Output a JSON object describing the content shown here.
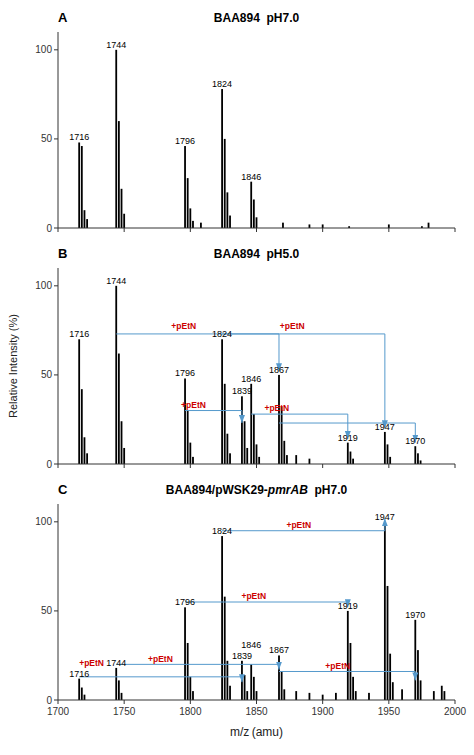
{
  "chart_data": [
    {
      "type": "bar",
      "panel_label": "A",
      "title": "BAA894  pH7.0",
      "color": "black",
      "x": [
        1716,
        1718,
        1720,
        1722,
        1744,
        1746,
        1748,
        1750,
        1796,
        1798,
        1800,
        1802,
        1808,
        1824,
        1826,
        1828,
        1830,
        1846,
        1848,
        1850,
        1870,
        1890,
        1900,
        1920,
        1950,
        1975,
        1980
      ],
      "values": [
        48,
        46,
        10,
        5,
        100,
        60,
        22,
        8,
        46,
        28,
        11,
        4,
        3,
        78,
        50,
        20,
        7,
        26,
        16,
        6,
        3,
        2,
        2,
        1,
        2,
        1,
        3
      ],
      "xlim": [
        1700,
        2000
      ],
      "ylim": [
        0,
        110
      ],
      "xticks": [
        1700,
        1750,
        1800,
        1850,
        1900,
        1950,
        2000
      ],
      "yticks": [
        0,
        50,
        100
      ],
      "tick_labels": "y",
      "grid": false,
      "peak_labels": [
        {
          "text": "1716",
          "x": 1716,
          "y": 48
        },
        {
          "text": "1744",
          "x": 1744,
          "y": 100
        },
        {
          "text": "1796",
          "x": 1796,
          "y": 46
        },
        {
          "text": "1824",
          "x": 1824,
          "y": 78
        },
        {
          "text": "1846",
          "x": 1846,
          "y": 26
        }
      ],
      "arrows": [],
      "annotations": []
    },
    {
      "type": "bar",
      "panel_label": "B",
      "title": "BAA894  pH5.0",
      "color": "black",
      "ylabel": "Relative Intensity (%)",
      "x": [
        1716,
        1718,
        1720,
        1722,
        1744,
        1746,
        1748,
        1750,
        1796,
        1798,
        1800,
        1802,
        1824,
        1826,
        1828,
        1830,
        1839,
        1841,
        1843,
        1846,
        1848,
        1850,
        1852,
        1867,
        1869,
        1871,
        1873,
        1880,
        1890,
        1919,
        1921,
        1923,
        1947,
        1949,
        1951,
        1970,
        1972,
        1974
      ],
      "values": [
        70,
        42,
        15,
        6,
        100,
        62,
        24,
        9,
        48,
        30,
        12,
        4,
        70,
        45,
        17,
        6,
        38,
        24,
        9,
        45,
        28,
        11,
        4,
        50,
        32,
        13,
        5,
        5,
        3,
        12,
        7,
        3,
        18,
        11,
        4,
        10,
        6,
        2
      ],
      "xlim": [
        1700,
        2000
      ],
      "ylim": [
        0,
        110
      ],
      "xticks": [
        1700,
        1750,
        1800,
        1850,
        1900,
        1950,
        2000
      ],
      "yticks": [
        0,
        50,
        100
      ],
      "tick_labels": "y",
      "grid": false,
      "peak_labels": [
        {
          "text": "1716",
          "x": 1716,
          "y": 70
        },
        {
          "text": "1744",
          "x": 1744,
          "y": 100
        },
        {
          "text": "1796",
          "x": 1796,
          "y": 48
        },
        {
          "text": "1824",
          "x": 1824,
          "y": 70
        },
        {
          "text": "1839",
          "x": 1839,
          "y": 38
        },
        {
          "text": "1846",
          "x": 1846,
          "y": 45
        },
        {
          "text": "1867",
          "x": 1867,
          "y": 50
        },
        {
          "text": "1919",
          "x": 1919,
          "y": 12
        },
        {
          "text": "1947",
          "x": 1947,
          "y": 18
        },
        {
          "text": "1970",
          "x": 1970,
          "y": 10
        }
      ],
      "arrows": [
        {
          "x1": 1744,
          "x2": 1867,
          "y": 73,
          "y_end": 52,
          "color": "#5599cc"
        },
        {
          "x1": 1824,
          "x2": 1947,
          "y": 73,
          "y_end": 20,
          "color": "#5599cc"
        },
        {
          "x1": 1796,
          "x2": 1839,
          "y": 30,
          "y_end": 23,
          "color": "#5599cc"
        },
        {
          "x1": 1846,
          "x2": 1919,
          "y": 28,
          "y_end": 14,
          "color": "#5599cc"
        },
        {
          "x1": 1867,
          "x2": 1970,
          "y": 23,
          "y_end": 12,
          "color": "#5599cc"
        }
      ],
      "annotations": [
        {
          "text": "+pEtN",
          "x": 1795,
          "y": 75,
          "align": "center",
          "color": "#cc0000"
        },
        {
          "text": "+pEtN",
          "x": 1877,
          "y": 75,
          "align": "center",
          "color": "#cc0000"
        },
        {
          "text": "+pEtN",
          "x": 1793,
          "y": 31,
          "align": "left",
          "color": "#cc0000"
        },
        {
          "text": "+pEtN",
          "x": 1856,
          "y": 29,
          "align": "left",
          "color": "#cc0000"
        }
      ]
    },
    {
      "type": "bar",
      "panel_label": "C",
      "title": [
        {
          "text": "BAA894/pWSK29-"
        },
        {
          "text": "pmrAB",
          "style": "italic"
        },
        {
          "text": "  pH7.0"
        }
      ],
      "xlabel": "m/z (amu)",
      "color": "black",
      "x": [
        1716,
        1718,
        1720,
        1744,
        1746,
        1748,
        1796,
        1798,
        1800,
        1802,
        1824,
        1826,
        1828,
        1830,
        1839,
        1841,
        1843,
        1846,
        1848,
        1850,
        1867,
        1869,
        1871,
        1880,
        1890,
        1900,
        1910,
        1919,
        1921,
        1923,
        1925,
        1935,
        1947,
        1949,
        1951,
        1953,
        1960,
        1970,
        1972,
        1974,
        1984,
        1990,
        1992
      ],
      "values": [
        12,
        7,
        3,
        18,
        11,
        4,
        52,
        32,
        13,
        5,
        92,
        58,
        22,
        8,
        22,
        14,
        5,
        20,
        13,
        5,
        25,
        16,
        6,
        5,
        4,
        3,
        4,
        50,
        32,
        13,
        5,
        4,
        100,
        64,
        26,
        10,
        6,
        45,
        28,
        11,
        5,
        8,
        5
      ],
      "xlim": [
        1700,
        2000
      ],
      "ylim": [
        0,
        110
      ],
      "xticks": [
        1700,
        1750,
        1800,
        1850,
        1900,
        1950,
        2000
      ],
      "yticks": [
        0,
        50,
        100
      ],
      "grid": false,
      "peak_labels": [
        {
          "text": "1716",
          "x": 1716,
          "y": 12
        },
        {
          "text": "1744",
          "x": 1744,
          "y": 18
        },
        {
          "text": "1796",
          "x": 1796,
          "y": 52
        },
        {
          "text": "1824",
          "x": 1824,
          "y": 92
        },
        {
          "text": "1839",
          "x": 1839,
          "y": 22
        },
        {
          "text": "1846",
          "x": 1846,
          "y": 20
        },
        {
          "text": "1867",
          "x": 1867,
          "y": 25
        },
        {
          "text": "1919",
          "x": 1919,
          "y": 50
        },
        {
          "text": "1947",
          "x": 1947,
          "y": 100
        },
        {
          "text": "1970",
          "x": 1970,
          "y": 45
        }
      ],
      "arrows": [
        {
          "x1": 1824,
          "x2": 1947,
          "y": 95,
          "y_end": 102,
          "color": "#5599cc"
        },
        {
          "x1": 1796,
          "x2": 1919,
          "y": 55,
          "y_end": 52,
          "color": "#5599cc"
        },
        {
          "x1": 1744,
          "x2": 1867,
          "y": 20,
          "y_end": 17,
          "color": "#5599cc"
        },
        {
          "x1": 1716,
          "x2": 1839,
          "y": 13,
          "y_end": 10,
          "color": "#5599cc"
        },
        {
          "x1": 1867,
          "x2": 1970,
          "y": 16,
          "y_end": 11,
          "color": "#5599cc"
        }
      ],
      "annotations": [
        {
          "text": "+pEtN",
          "x": 1882,
          "y": 96,
          "align": "center",
          "color": "#cc0000"
        },
        {
          "text": "+pEtN",
          "x": 1848,
          "y": 56,
          "align": "center",
          "color": "#cc0000"
        },
        {
          "text": "+pEtN",
          "x": 1768,
          "y": 21,
          "align": "left",
          "color": "#cc0000"
        },
        {
          "text": "+pEtN",
          "x": 1716,
          "y": 14,
          "align": "left",
          "color": "#cc0000"
        },
        {
          "text": "+pEtN",
          "x": 1902,
          "y": 17,
          "align": "left",
          "color": "#cc0000"
        }
      ]
    }
  ]
}
